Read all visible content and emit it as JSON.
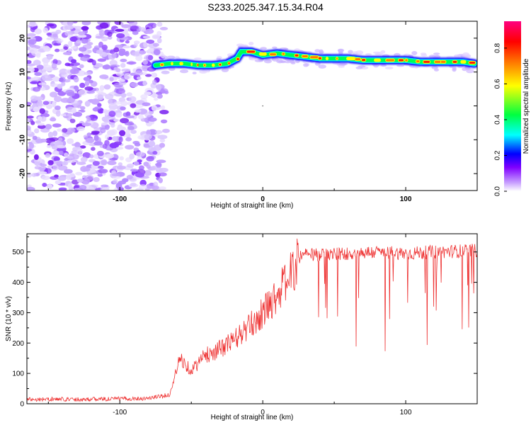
{
  "title": "S233.2025.347.15.34.R04",
  "chart_data": [
    {
      "type": "heatmap",
      "xlabel": "Height of straight line (km)",
      "ylabel": "Frequency (Hz)",
      "xlim": [
        -165,
        150
      ],
      "ylim": [
        -25,
        25
      ],
      "xticks": [
        -100,
        0,
        100
      ],
      "yticks": [
        -20,
        -10,
        0,
        10,
        20
      ],
      "colorbar": {
        "label": "Normalized spectral amplitude",
        "range": [
          0.0,
          0.95
        ],
        "ticks": [
          "0.0",
          "0.2",
          "0.4",
          "0.6",
          "0.8"
        ],
        "colors": [
          "#ffffff",
          "#8000ff",
          "#0000ff",
          "#00ffff",
          "#00ff00",
          "#ffff00",
          "#ff8000",
          "#ff0000",
          "#ff0080"
        ]
      },
      "noise_region_x": [
        -165,
        -70
      ],
      "ridge": {
        "x": [
          -75,
          -65,
          -55,
          -45,
          -35,
          -25,
          -18,
          -15,
          -8,
          0,
          10,
          20,
          30,
          40,
          50,
          60,
          70,
          80,
          90,
          100,
          110,
          120,
          130,
          140,
          148
        ],
        "y": [
          12,
          12.5,
          12.5,
          12,
          12,
          12.5,
          14,
          16,
          16,
          15,
          15.5,
          15,
          14.5,
          14,
          14,
          14,
          13.5,
          13.5,
          13.5,
          13.5,
          13,
          13,
          13,
          13,
          12.5
        ]
      }
    },
    {
      "type": "line",
      "xlabel": "Height of straight line (km)",
      "ylabel": "SNR (10 * v/v)",
      "xlim": [
        -165,
        150
      ],
      "ylim": [
        0,
        560
      ],
      "xticks": [
        -100,
        0,
        100
      ],
      "yticks": [
        0,
        100,
        200,
        300,
        400,
        500
      ],
      "color": "#ee3333",
      "trend": {
        "x": [
          -165,
          -120,
          -80,
          -65,
          -58,
          -50,
          -40,
          -30,
          -20,
          -10,
          0,
          10,
          20,
          27,
          40,
          60,
          80,
          100,
          120,
          150
        ],
        "y": [
          15,
          15,
          18,
          30,
          150,
          110,
          160,
          180,
          210,
          250,
          300,
          360,
          430,
          490,
          490,
          495,
          500,
          495,
          500,
          505
        ]
      }
    }
  ]
}
